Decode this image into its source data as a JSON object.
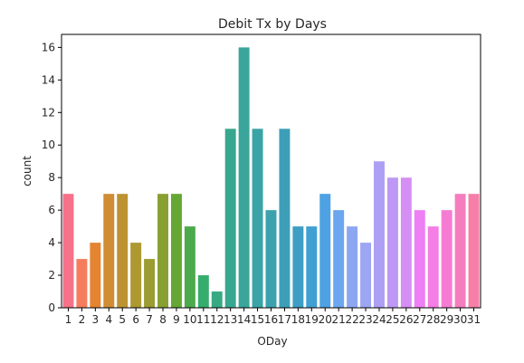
{
  "chart_data": {
    "type": "bar",
    "title": "Debit Tx by Days",
    "xlabel": "ODay",
    "ylabel": "count",
    "ylim": [
      0,
      16.8
    ],
    "yticks": [
      0,
      2,
      4,
      6,
      8,
      10,
      12,
      14,
      16
    ],
    "grid": false,
    "categories": [
      "1",
      "2",
      "3",
      "4",
      "5",
      "6",
      "7",
      "8",
      "9",
      "10",
      "11",
      "12",
      "13",
      "14",
      "15",
      "16",
      "17",
      "18",
      "19",
      "20",
      "21",
      "22",
      "23",
      "24",
      "25",
      "26",
      "27",
      "28",
      "29",
      "30",
      "31"
    ],
    "values": [
      7,
      3,
      4,
      7,
      7,
      4,
      3,
      7,
      7,
      5,
      2,
      1,
      11,
      16,
      11,
      6,
      11,
      5,
      5,
      7,
      6,
      5,
      4,
      9,
      8,
      8,
      6,
      5,
      6,
      7,
      7
    ],
    "colors": [
      "#f77189",
      "#f57d5e",
      "#e48431",
      "#d08c32",
      "#bd9332",
      "#ae9832",
      "#9b9c32",
      "#88a032",
      "#64a833",
      "#4daa4c",
      "#36ad6d",
      "#37aa82",
      "#38a78f",
      "#39a59b",
      "#3aa3a5",
      "#3ba1ad",
      "#3d9fb7",
      "#3e9ec3",
      "#40a0d3",
      "#4ea1e3",
      "#6ba6ee",
      "#8ca6f2",
      "#9da6f4",
      "#ad9ff4",
      "#bd98f4",
      "#d58ff4",
      "#ee7ff4",
      "#f57ee6",
      "#f57bd3",
      "#f57dbe",
      "#f67fa8"
    ]
  }
}
